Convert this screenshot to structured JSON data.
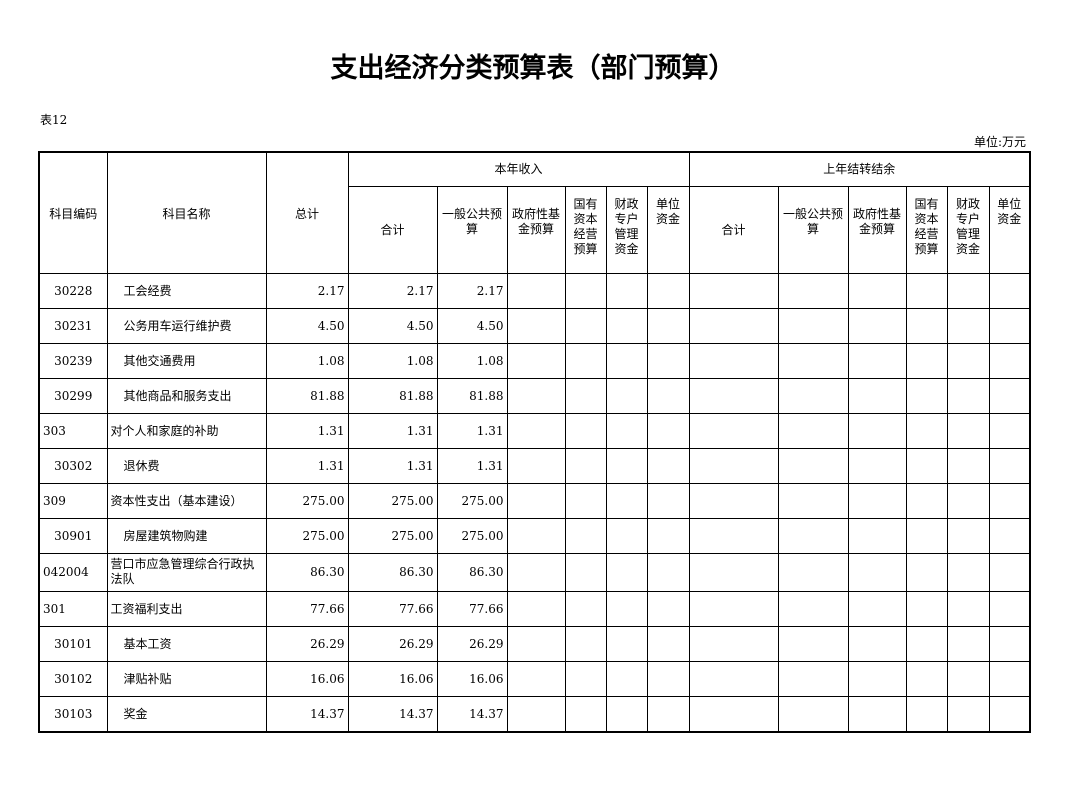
{
  "title": "支出经济分类预算表（部门预算）",
  "table_no": "表12",
  "unit": "单位:万元",
  "headers": {
    "code": "科目编码",
    "name": "科目名称",
    "total": "总计",
    "current_year": "本年收入",
    "carryover": "上年结转结余",
    "sub": [
      "合计",
      "一般公共预算",
      "政府性基金预算",
      "国有资本经营预算",
      "财政专户管理资金",
      "单位资金"
    ]
  },
  "rows": [
    {
      "code": "30228",
      "name": "工会经费",
      "total": "2.17",
      "sum": "2.17",
      "general": "2.17",
      "sub": true
    },
    {
      "code": "30231",
      "name": "公务用车运行维护费",
      "total": "4.50",
      "sum": "4.50",
      "general": "4.50",
      "sub": true
    },
    {
      "code": "30239",
      "name": "其他交通费用",
      "total": "1.08",
      "sum": "1.08",
      "general": "1.08",
      "sub": true
    },
    {
      "code": "30299",
      "name": "其他商品和服务支出",
      "total": "81.88",
      "sum": "81.88",
      "general": "81.88",
      "sub": true
    },
    {
      "code": "303",
      "name": "对个人和家庭的补助",
      "total": "1.31",
      "sum": "1.31",
      "general": "1.31",
      "sub": false
    },
    {
      "code": "30302",
      "name": "退休费",
      "total": "1.31",
      "sum": "1.31",
      "general": "1.31",
      "sub": true
    },
    {
      "code": "309",
      "name": "资本性支出（基本建设）",
      "total": "275.00",
      "sum": "275.00",
      "general": "275.00",
      "sub": false
    },
    {
      "code": "30901",
      "name": "房屋建筑物购建",
      "total": "275.00",
      "sum": "275.00",
      "general": "275.00",
      "sub": true
    },
    {
      "code": "042004",
      "name": "营口市应急管理综合行政执法队",
      "total": "86.30",
      "sum": "86.30",
      "general": "86.30",
      "sub": false,
      "tall": true
    },
    {
      "code": "301",
      "name": "工资福利支出",
      "total": "77.66",
      "sum": "77.66",
      "general": "77.66",
      "sub": false
    },
    {
      "code": "30101",
      "name": "基本工资",
      "total": "26.29",
      "sum": "26.29",
      "general": "26.29",
      "sub": true
    },
    {
      "code": "30102",
      "name": "津贴补贴",
      "total": "16.06",
      "sum": "16.06",
      "general": "16.06",
      "sub": true
    },
    {
      "code": "30103",
      "name": "奖金",
      "total": "14.37",
      "sum": "14.37",
      "general": "14.37",
      "sub": true
    }
  ]
}
